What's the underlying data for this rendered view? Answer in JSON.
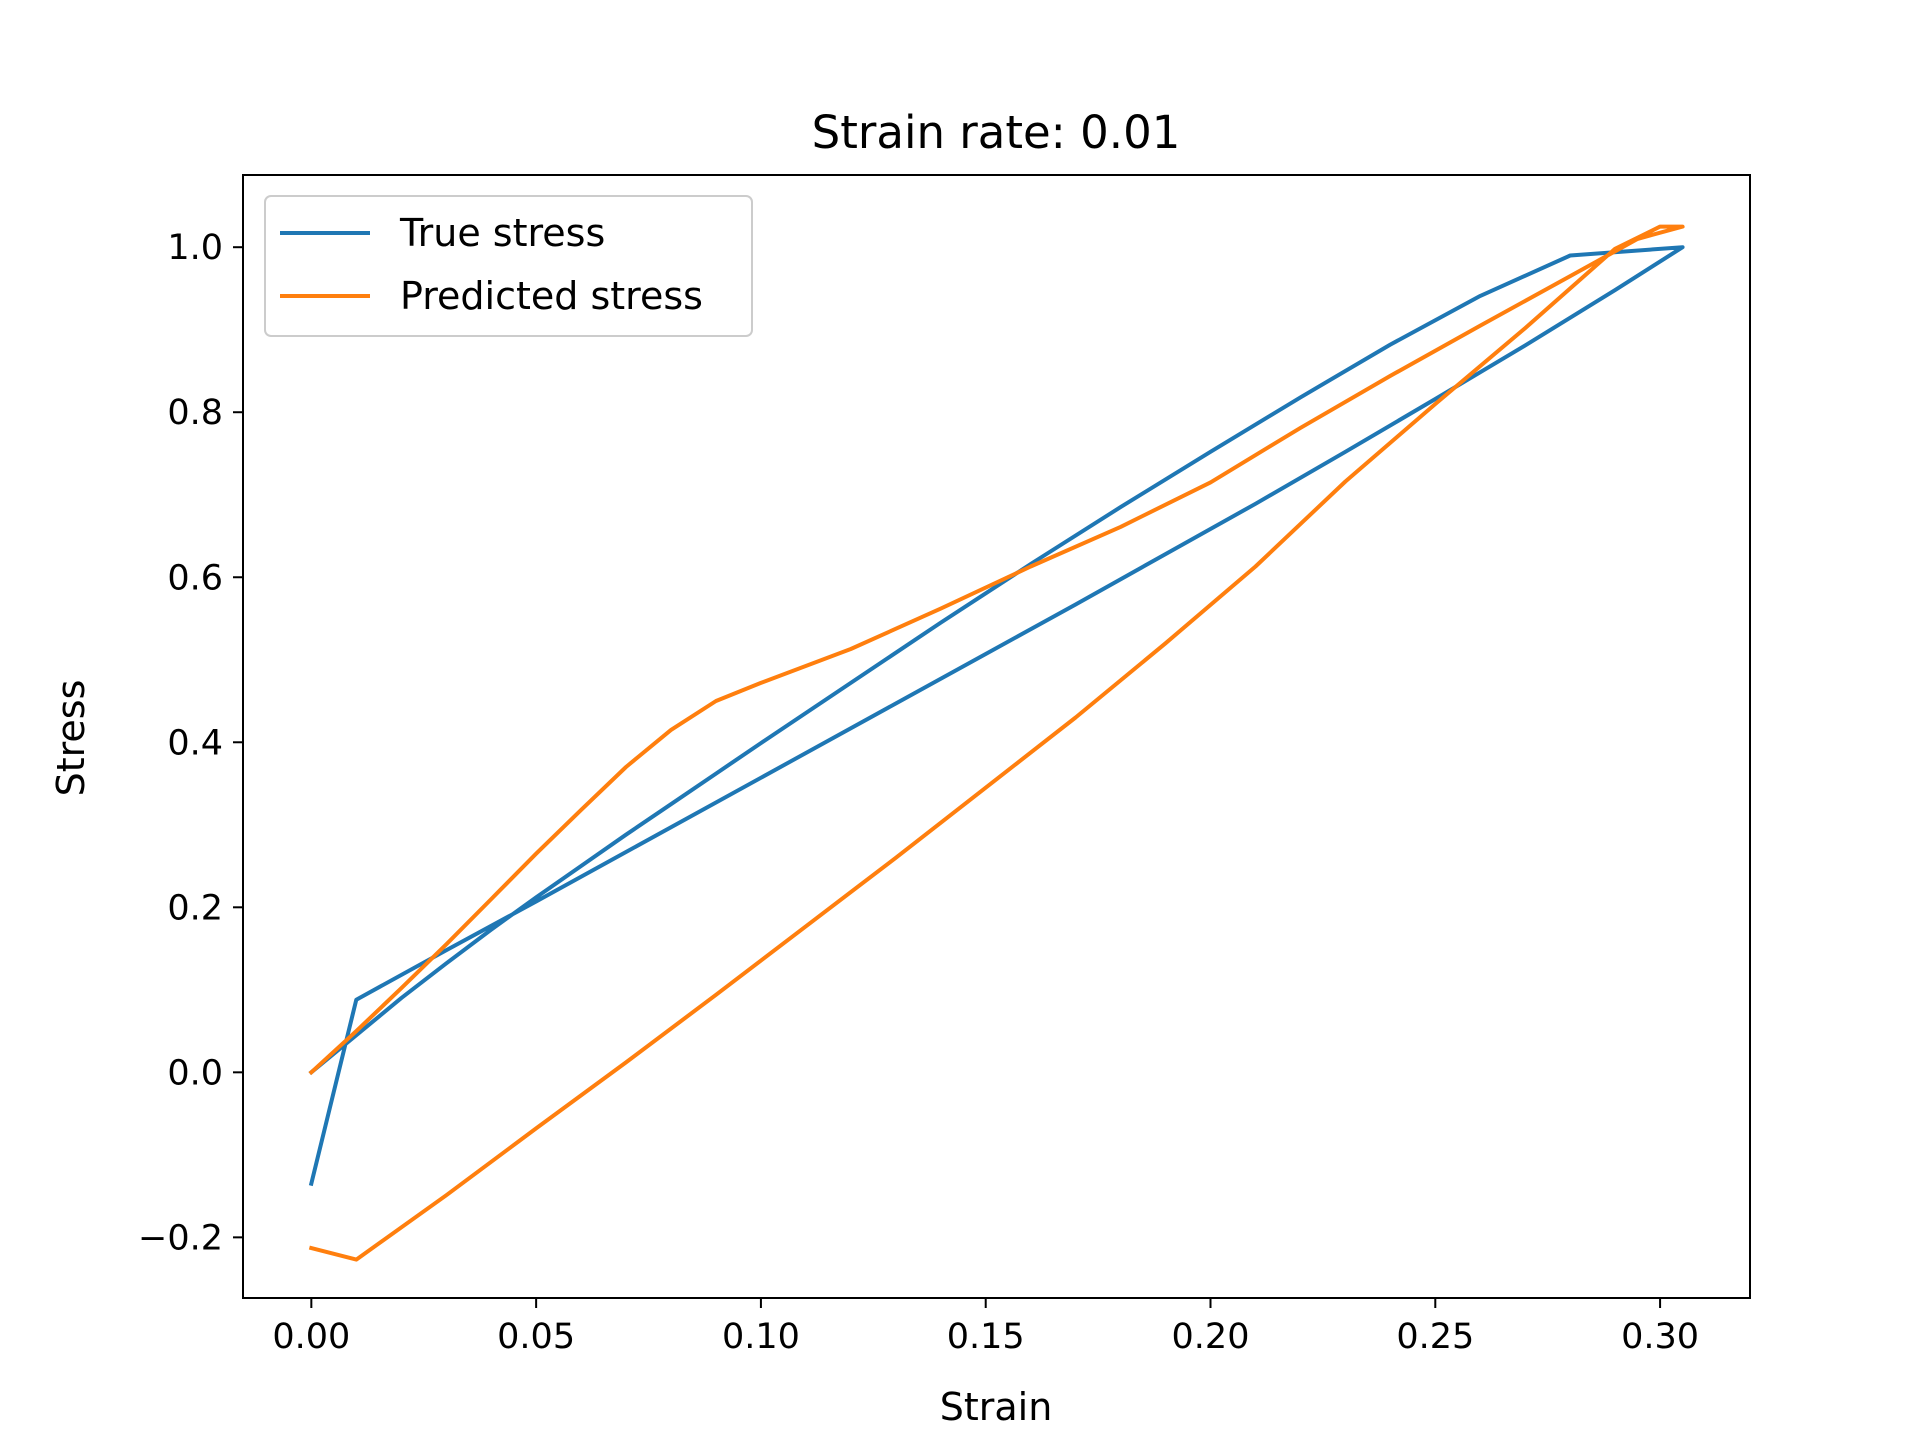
{
  "chart_data": {
    "type": "line",
    "title": "Strain rate: 0.01",
    "xlabel": "Strain",
    "ylabel": "Stress",
    "xlim": [
      -0.0152,
      0.32
    ],
    "ylim": [
      -0.2735,
      1.0875
    ],
    "xticks": [
      0.0,
      0.05,
      0.1,
      0.15,
      0.2,
      0.25,
      0.3
    ],
    "xtick_labels": [
      "0.00",
      "0.05",
      "0.10",
      "0.15",
      "0.20",
      "0.25",
      "0.30"
    ],
    "yticks": [
      -0.2,
      0.0,
      0.2,
      0.4,
      0.6,
      0.8,
      1.0
    ],
    "ytick_labels": [
      "−0.2",
      "0.0",
      "0.2",
      "0.4",
      "0.6",
      "0.8",
      "1.0"
    ],
    "grid": false,
    "legend_position": "upper-left",
    "series": [
      {
        "name": "True stress",
        "color": "#1f77b4",
        "x": [
          0.0,
          0.01,
          0.02,
          0.03,
          0.04,
          0.05,
          0.06,
          0.07,
          0.08,
          0.09,
          0.1,
          0.12,
          0.14,
          0.16,
          0.18,
          0.2,
          0.22,
          0.24,
          0.26,
          0.28,
          0.305,
          0.29,
          0.27,
          0.25,
          0.23,
          0.21,
          0.19,
          0.17,
          0.15,
          0.13,
          0.11,
          0.09,
          0.07,
          0.05,
          0.03,
          0.01,
          0.0
        ],
        "y": [
          0.0,
          0.045,
          0.09,
          0.132,
          0.173,
          0.212,
          0.25,
          0.288,
          0.325,
          0.362,
          0.399,
          0.472,
          0.545,
          0.616,
          0.685,
          0.752,
          0.818,
          0.882,
          0.941,
          0.99,
          1.0,
          0.948,
          0.881,
          0.816,
          0.752,
          0.689,
          0.628,
          0.567,
          0.507,
          0.447,
          0.387,
          0.327,
          0.267,
          0.207,
          0.148,
          0.088,
          -0.135
        ]
      },
      {
        "name": "Predicted stress",
        "color": "#ff7f0e",
        "x": [
          0.0,
          0.01,
          0.02,
          0.03,
          0.04,
          0.05,
          0.06,
          0.07,
          0.08,
          0.09,
          0.1,
          0.12,
          0.14,
          0.16,
          0.18,
          0.2,
          0.22,
          0.24,
          0.26,
          0.28,
          0.295,
          0.305,
          0.3,
          0.29,
          0.27,
          0.25,
          0.23,
          0.21,
          0.19,
          0.17,
          0.15,
          0.13,
          0.11,
          0.09,
          0.07,
          0.05,
          0.03,
          0.01,
          0.0
        ],
        "y": [
          0.0,
          0.05,
          0.102,
          0.155,
          0.21,
          0.265,
          0.318,
          0.37,
          0.415,
          0.45,
          0.472,
          0.513,
          0.562,
          0.613,
          0.661,
          0.715,
          0.781,
          0.844,
          0.905,
          0.965,
          1.01,
          1.025,
          1.025,
          0.998,
          0.902,
          0.81,
          0.716,
          0.613,
          0.52,
          0.43,
          0.345,
          0.26,
          0.177,
          0.094,
          0.012,
          -0.068,
          -0.149,
          -0.227,
          -0.213
        ]
      }
    ]
  }
}
